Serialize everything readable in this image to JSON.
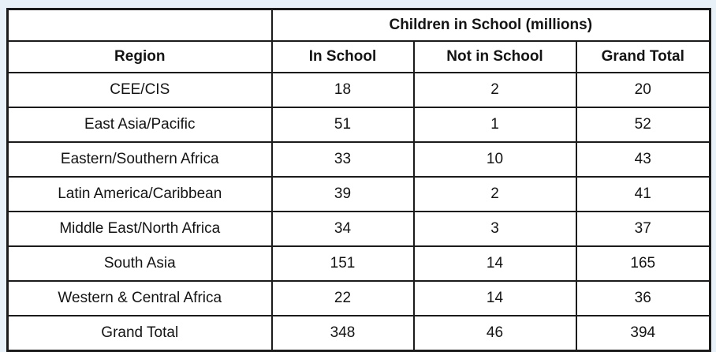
{
  "chart_data": {
    "type": "table",
    "title": "Children in School (millions)",
    "columns": [
      "Region",
      "In School",
      "Not in School",
      "Grand Total"
    ],
    "rows": [
      [
        "CEE/CIS",
        18,
        2,
        20
      ],
      [
        "East Asia/Pacific",
        51,
        1,
        52
      ],
      [
        "Eastern/Southern Africa",
        33,
        10,
        43
      ],
      [
        "Latin America/Caribbean",
        39,
        2,
        41
      ],
      [
        "Middle East/North Africa",
        34,
        3,
        37
      ],
      [
        "South Asia",
        151,
        14,
        165
      ],
      [
        "Western & Central Africa",
        22,
        14,
        36
      ],
      [
        "Grand Total",
        348,
        46,
        394
      ]
    ],
    "layout": {
      "title_spans_value_columns": true,
      "grid": "all-borders",
      "background_color": "#e8f0f8",
      "table_background": "#ffffff",
      "border_color": "#1b1b1b"
    }
  }
}
